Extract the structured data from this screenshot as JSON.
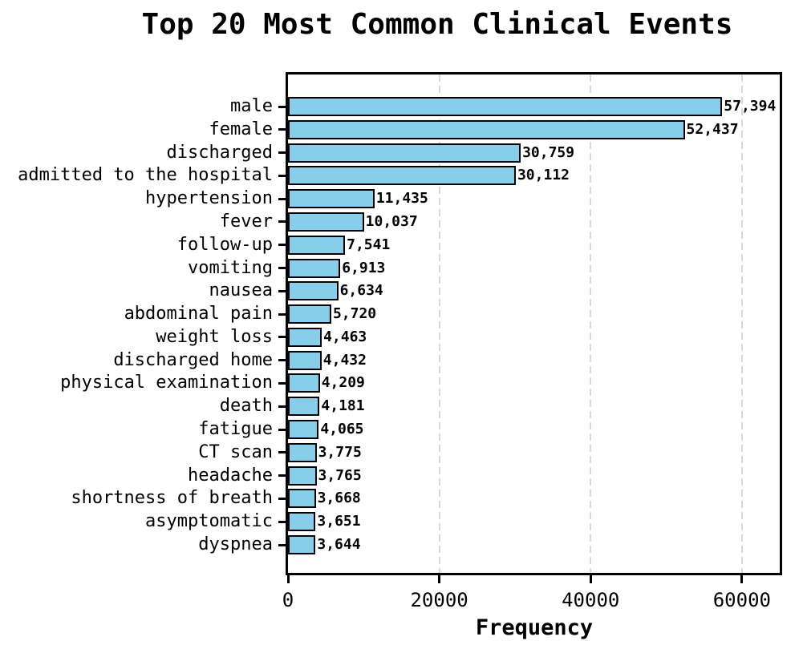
{
  "chart_data": {
    "type": "bar",
    "orientation": "horizontal",
    "title": "Top 20 Most Common Clinical Events",
    "xlabel": "Frequency",
    "ylabel": "",
    "categories": [
      "male",
      "female",
      "discharged",
      "admitted to the hospital",
      "hypertension",
      "fever",
      "follow-up",
      "vomiting",
      "nausea",
      "abdominal pain",
      "weight loss",
      "discharged home",
      "physical examination",
      "death",
      "fatigue",
      "CT scan",
      "headache",
      "shortness of breath",
      "asymptomatic",
      "dyspnea"
    ],
    "values": [
      57394,
      52437,
      30759,
      30112,
      11435,
      10037,
      7541,
      6913,
      6634,
      5720,
      4463,
      4432,
      4209,
      4181,
      4065,
      3775,
      3765,
      3668,
      3651,
      3644
    ],
    "value_labels": [
      "57,394",
      "52,437",
      "30,759",
      "30,112",
      "11,435",
      "10,037",
      "7,541",
      "6,913",
      "6,634",
      "5,720",
      "4,463",
      "4,432",
      "4,209",
      "4,181",
      "4,065",
      "3,775",
      "3,765",
      "3,668",
      "3,651",
      "3,644"
    ],
    "xlim": [
      0,
      65000
    ],
    "xticks": [
      0,
      20000,
      40000,
      60000
    ],
    "xtick_labels": [
      "0",
      "20000",
      "40000",
      "60000"
    ],
    "grid": "vertical-dashed",
    "legend": "none",
    "bar_color": "#87CEEB",
    "bar_edge_color": "#000000",
    "grid_color": "#d9d9d9",
    "text_color": "#000000"
  }
}
